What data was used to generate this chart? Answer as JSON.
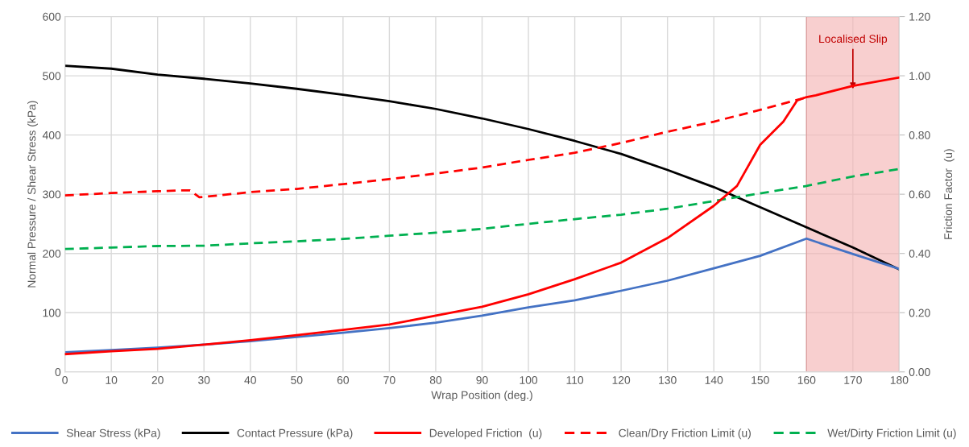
{
  "chart_data": {
    "type": "line",
    "xlabel": "Wrap Position (deg.)",
    "ylabel": "Normal Pressure / Shear Stress (kPa)",
    "y2label": "Friction Factor  (u)",
    "xlim": [
      0,
      180
    ],
    "xticks": [
      0,
      10,
      20,
      30,
      40,
      50,
      60,
      70,
      80,
      90,
      100,
      110,
      120,
      130,
      140,
      150,
      160,
      170,
      180
    ],
    "ylim": [
      0,
      600
    ],
    "yticks": [
      0,
      100,
      200,
      300,
      400,
      500,
      600
    ],
    "y2lim": [
      0,
      1.2
    ],
    "y2ticks": [
      {
        "value": 0,
        "label": "0.00"
      },
      {
        "value": 0.2,
        "label": "0.20"
      },
      {
        "value": 0.4,
        "label": "0.40"
      },
      {
        "value": 0.6,
        "label": "0.60"
      },
      {
        "value": 0.8,
        "label": "0.80"
      },
      {
        "value": 1.0,
        "label": "1.00"
      },
      {
        "value": 1.2,
        "label": "1.20"
      }
    ],
    "grid": true,
    "legend": "bottom",
    "marker": "none",
    "bands": [
      {
        "axis": "x",
        "from": 160,
        "to": 180,
        "label": "Localised Slip",
        "color": "#f4b6b6"
      }
    ],
    "series": [
      {
        "name": "Shear Stress (kPa)",
        "color": "#4472c4",
        "line_style": "solid",
        "x": [
          0,
          10,
          20,
          30,
          40,
          50,
          60,
          70,
          80,
          90,
          100,
          110,
          120,
          130,
          140,
          150,
          160,
          170,
          180
        ],
        "values": [
          33,
          37,
          41,
          46,
          52,
          59,
          66,
          74,
          83,
          95,
          109,
          121,
          137,
          154,
          175,
          196,
          225,
          199,
          174
        ]
      },
      {
        "name": "Contact Pressure (kPa)",
        "color": "#000000",
        "line_style": "solid",
        "x": [
          0,
          10,
          20,
          30,
          40,
          50,
          60,
          70,
          80,
          90,
          100,
          110,
          120,
          130,
          140,
          150,
          160,
          170,
          180
        ],
        "values": [
          517,
          512,
          502,
          495,
          487,
          478,
          468,
          457,
          444,
          428,
          410,
          390,
          368,
          341,
          312,
          278,
          244,
          210,
          173
        ]
      },
      {
        "name": "Developed Friction  (u)",
        "color": "#ff0000",
        "line_style": "solid",
        "axis": "y2",
        "x": [
          0,
          10,
          20,
          30,
          40,
          50,
          60,
          70,
          80,
          90,
          100,
          110,
          120,
          130,
          140,
          145,
          150,
          155,
          158,
          160,
          162,
          170,
          180
        ],
        "values": [
          0.06,
          0.07,
          0.078,
          0.092,
          0.107,
          0.124,
          0.142,
          0.16,
          0.19,
          0.22,
          0.262,
          0.313,
          0.369,
          0.452,
          0.561,
          0.628,
          0.767,
          0.845,
          0.917,
          0.928,
          0.934,
          0.966,
          0.994
        ]
      },
      {
        "name": "Clean/Dry Friction Limit (u)",
        "color": "#ff0000",
        "line_style": "dashed",
        "axis": "y2",
        "x": [
          0,
          10,
          20,
          25,
          27,
          29,
          30,
          40,
          50,
          60,
          70,
          80,
          90,
          100,
          110,
          120,
          130,
          140,
          150,
          160
        ],
        "values": [
          0.596,
          0.604,
          0.61,
          0.613,
          0.613,
          0.59,
          0.591,
          0.607,
          0.618,
          0.634,
          0.651,
          0.67,
          0.69,
          0.716,
          0.74,
          0.773,
          0.811,
          0.845,
          0.885,
          0.927
        ]
      },
      {
        "name": "Wet/Dirty Friction Limit (u)",
        "color": "#00b050",
        "line_style": "dashed",
        "axis": "y2",
        "x": [
          0,
          10,
          20,
          30,
          40,
          50,
          60,
          70,
          80,
          90,
          100,
          110,
          120,
          130,
          140,
          150,
          160,
          170,
          180
        ],
        "values": [
          0.415,
          0.42,
          0.425,
          0.426,
          0.434,
          0.441,
          0.449,
          0.46,
          0.47,
          0.483,
          0.5,
          0.516,
          0.531,
          0.551,
          0.577,
          0.603,
          0.628,
          0.66,
          0.685
        ]
      }
    ]
  }
}
